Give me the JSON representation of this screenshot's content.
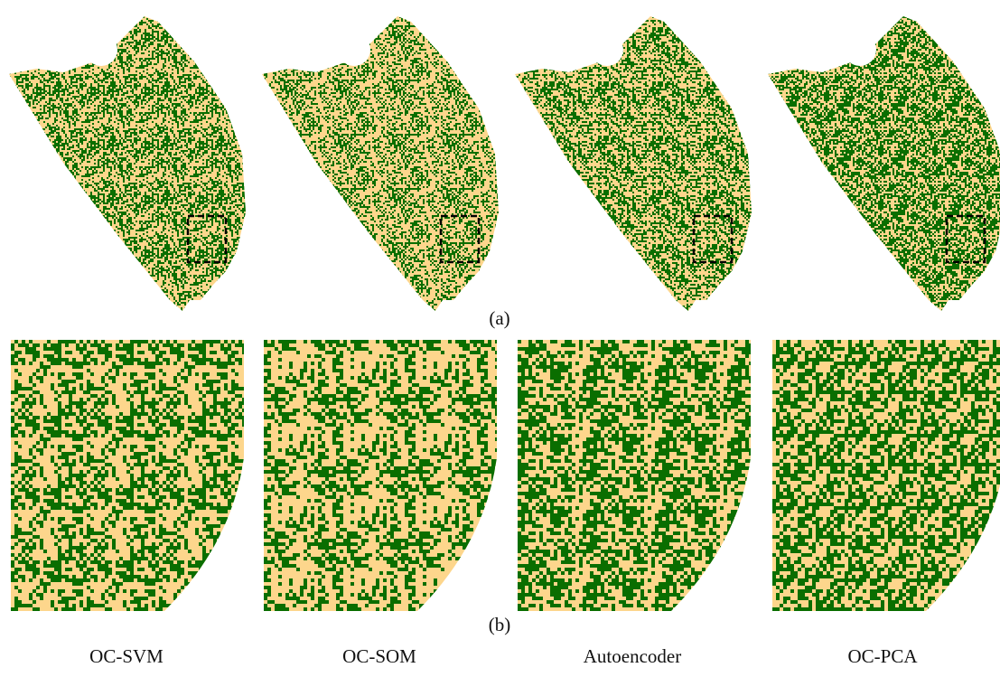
{
  "panels": [
    {
      "label": "(a)"
    },
    {
      "label": "(b)"
    }
  ],
  "methods": [
    "OC-SVM",
    "OC-SOM",
    "Autoencoder",
    "OC-PCA"
  ]
}
